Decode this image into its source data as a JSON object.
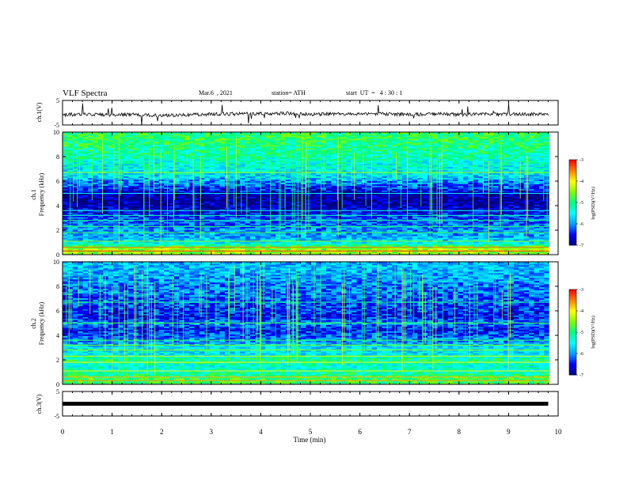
{
  "header": {
    "title": "VLF Spectra",
    "date": "Mar.6  , 2021",
    "station": "station= ATH",
    "start_ut": "start  UT  =   4 : 30 : 1"
  },
  "panels": {
    "ch1_wave": {
      "ylabel": "ch.1(V)",
      "ticks": [
        "5",
        "-5"
      ]
    },
    "ch1_spec": {
      "ylabel_line1": "ch.1",
      "ylabel_line2": "Frequency  (kHz)",
      "ticks": [
        "10",
        "8",
        "6",
        "4",
        "2",
        "0"
      ]
    },
    "ch2_spec": {
      "ylabel_line1": "ch.2",
      "ylabel_line2": "Frequency  (kHz)",
      "ticks": [
        "10",
        "8",
        "6",
        "4",
        "2",
        "0"
      ]
    },
    "ch3_wave": {
      "ylabel": "ch.3(V)",
      "ticks": [
        "5",
        "-5"
      ]
    }
  },
  "xaxis": {
    "label": "Time  (min)",
    "ticks": [
      "0",
      "1",
      "2",
      "3",
      "4",
      "5",
      "6",
      "7",
      "8",
      "9",
      "10"
    ]
  },
  "colorbar": {
    "label": "log(PSD)(V²/Hz)",
    "ticks": [
      "-3",
      "-4",
      "-5",
      "-6",
      "-7"
    ]
  },
  "chart_data": [
    {
      "type": "line",
      "name": "ch.1 waveform",
      "xlim": [
        0,
        10
      ],
      "ylim": [
        -5,
        5
      ],
      "x": [
        0,
        0.5,
        1,
        1.5,
        2,
        2.5,
        3,
        3.5,
        4,
        4.5,
        5,
        5.5,
        6,
        6.5,
        7,
        7.5,
        8,
        8.5,
        9,
        9.5,
        9.8
      ],
      "y": [
        -0.8,
        -0.6,
        -0.9,
        -0.7,
        -1.2,
        -0.9,
        -0.6,
        -0.5,
        -0.4,
        -0.3,
        -0.7,
        -0.4,
        -0.6,
        -0.5,
        -0.7,
        -0.5,
        -0.8,
        -0.6,
        -0.7,
        -0.6,
        -0.6
      ]
    },
    {
      "type": "heatmap",
      "name": "ch.1 spectrogram",
      "xlim": [
        0,
        10
      ],
      "ylim": [
        0,
        10
      ],
      "zlim": [
        -7,
        -3
      ],
      "freq_kHz": [
        0.5,
        1,
        1.5,
        2,
        2.5,
        3,
        3.5,
        4,
        4.5,
        5,
        5.5,
        6,
        6.5,
        7,
        7.5,
        8,
        8.5,
        9,
        9.5
      ],
      "mean_logpsd": [
        -4.4,
        -5.6,
        -5.9,
        -6.0,
        -6.2,
        -6.3,
        -6.6,
        -6.8,
        -6.9,
        -6.8,
        -6.3,
        -6.0,
        -5.6,
        -5.5,
        -5.4,
        -5.2,
        -5.1,
        -5.0,
        -4.9
      ]
    },
    {
      "type": "heatmap",
      "name": "ch.2 spectrogram",
      "xlim": [
        0,
        10
      ],
      "ylim": [
        0,
        10
      ],
      "zlim": [
        -7,
        -3
      ],
      "freq_kHz": [
        0.5,
        1,
        1.5,
        2,
        2.5,
        3,
        3.5,
        4,
        4.5,
        5,
        5.5,
        6,
        6.5,
        7,
        7.5,
        8,
        8.5,
        9,
        9.5
      ],
      "mean_logpsd": [
        -4.8,
        -5.2,
        -5.4,
        -5.0,
        -5.6,
        -5.6,
        -6.0,
        -6.2,
        -6.5,
        -6.0,
        -6.5,
        -6.4,
        -6.3,
        -6.2,
        -6.1,
        -6.1,
        -6.0,
        -5.9,
        -5.8
      ]
    },
    {
      "type": "line",
      "name": "ch.3 waveform",
      "xlim": [
        0,
        10
      ],
      "ylim": [
        -5,
        5
      ],
      "x": [
        0,
        9.8
      ],
      "y": [
        0,
        0
      ]
    }
  ],
  "colors": {
    "spectrum_map": [
      "#000080",
      "#0000ff",
      "#00a0ff",
      "#00ffff",
      "#00ff80",
      "#80ff00",
      "#ffff00",
      "#ff8000",
      "#ff0000",
      "#ffffff"
    ],
    "wave": "#000000",
    "axis": "#000000"
  }
}
